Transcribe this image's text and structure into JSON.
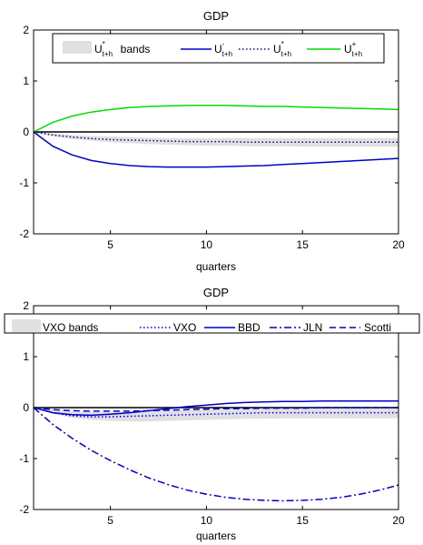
{
  "chart_data": [
    {
      "type": "line",
      "title": "GDP",
      "xlabel": "quarters",
      "ylabel": "",
      "xlim": [
        1,
        20
      ],
      "ylim": [
        -2,
        2
      ],
      "xticks": [
        5,
        10,
        15,
        20
      ],
      "yticks": [
        -2,
        -1,
        0,
        1,
        2
      ],
      "legend_position": "top",
      "band": {
        "name": "U*t+h bands",
        "label_main": "U",
        "label_sup": "*",
        "label_sub": "t+h",
        "label_rest": " bands",
        "color": "#e0e0e0",
        "x": [
          1,
          2,
          3,
          4,
          5,
          6,
          7,
          8,
          9,
          10,
          11,
          12,
          13,
          14,
          15,
          16,
          17,
          18,
          19,
          20
        ],
        "lower": [
          0,
          -0.09,
          -0.14,
          -0.17,
          -0.2,
          -0.22,
          -0.24,
          -0.25,
          -0.26,
          -0.27,
          -0.27,
          -0.28,
          -0.28,
          -0.28,
          -0.29,
          -0.29,
          -0.29,
          -0.29,
          -0.29,
          -0.29
        ],
        "upper": [
          0,
          -0.03,
          -0.06,
          -0.08,
          -0.09,
          -0.1,
          -0.11,
          -0.12,
          -0.12,
          -0.12,
          -0.12,
          -0.12,
          -0.12,
          -0.12,
          -0.12,
          -0.12,
          -0.12,
          -0.12,
          -0.12,
          -0.12
        ]
      },
      "series": [
        {
          "name": "U-t+h",
          "label_main": "U",
          "label_sup": "-",
          "label_sub": "t+h",
          "style": "solid",
          "color": "#0000cc",
          "x": [
            1,
            2,
            3,
            4,
            5,
            6,
            7,
            8,
            9,
            10,
            11,
            12,
            13,
            14,
            15,
            16,
            17,
            18,
            19,
            20
          ],
          "y": [
            0,
            -0.28,
            -0.45,
            -0.56,
            -0.62,
            -0.66,
            -0.68,
            -0.69,
            -0.69,
            -0.69,
            -0.68,
            -0.67,
            -0.66,
            -0.64,
            -0.62,
            -0.6,
            -0.58,
            -0.56,
            -0.54,
            -0.52
          ]
        },
        {
          "name": "U*t+h",
          "label_main": "U",
          "label_sup": "*",
          "label_sub": "t+h",
          "style": "dotted",
          "color": "#0000cc",
          "x": [
            1,
            2,
            3,
            4,
            5,
            6,
            7,
            8,
            9,
            10,
            11,
            12,
            13,
            14,
            15,
            16,
            17,
            18,
            19,
            20
          ],
          "y": [
            0,
            -0.06,
            -0.1,
            -0.13,
            -0.15,
            -0.16,
            -0.17,
            -0.18,
            -0.19,
            -0.19,
            -0.19,
            -0.2,
            -0.2,
            -0.2,
            -0.2,
            -0.2,
            -0.2,
            -0.2,
            -0.2,
            -0.2
          ]
        },
        {
          "name": "U+t+h",
          "label_main": "U",
          "label_sup": "+",
          "label_sub": "t+h",
          "style": "solid",
          "color": "#00dd00",
          "x": [
            1,
            2,
            3,
            4,
            5,
            6,
            7,
            8,
            9,
            10,
            11,
            12,
            13,
            14,
            15,
            16,
            17,
            18,
            19,
            20
          ],
          "y": [
            0,
            0.19,
            0.31,
            0.39,
            0.44,
            0.48,
            0.5,
            0.51,
            0.52,
            0.52,
            0.52,
            0.51,
            0.5,
            0.5,
            0.49,
            0.48,
            0.47,
            0.46,
            0.45,
            0.44
          ]
        }
      ]
    },
    {
      "type": "line",
      "title": "GDP",
      "xlabel": "quarters",
      "ylabel": "",
      "xlim": [
        1,
        20
      ],
      "ylim": [
        -2,
        2
      ],
      "xticks": [
        5,
        10,
        15,
        20
      ],
      "yticks": [
        -2,
        -1,
        0,
        1,
        2
      ],
      "legend_position": "top",
      "band": {
        "name": "VXO bands",
        "label_main": "VXO bands",
        "color": "#e0e0e0",
        "x": [
          1,
          2,
          3,
          4,
          5,
          6,
          7,
          8,
          9,
          10,
          11,
          12,
          13,
          14,
          15,
          16,
          17,
          18,
          19,
          20
        ],
        "lower": [
          0,
          -0.12,
          -0.2,
          -0.24,
          -0.26,
          -0.27,
          -0.27,
          -0.26,
          -0.25,
          -0.24,
          -0.23,
          -0.22,
          -0.22,
          -0.21,
          -0.21,
          -0.21,
          -0.21,
          -0.21,
          -0.21,
          -0.21
        ],
        "upper": [
          0,
          -0.04,
          -0.08,
          -0.09,
          -0.09,
          -0.08,
          -0.07,
          -0.06,
          -0.05,
          -0.04,
          -0.03,
          -0.02,
          -0.02,
          -0.01,
          -0.01,
          -0.01,
          -0.01,
          -0.01,
          -0.01,
          -0.01
        ]
      },
      "series": [
        {
          "name": "VXO",
          "label_main": "VXO",
          "style": "dotted",
          "color": "#0000cc",
          "x": [
            1,
            2,
            3,
            4,
            5,
            6,
            7,
            8,
            9,
            10,
            11,
            12,
            13,
            14,
            15,
            16,
            17,
            18,
            19,
            20
          ],
          "y": [
            0,
            -0.1,
            -0.16,
            -0.18,
            -0.18,
            -0.17,
            -0.16,
            -0.15,
            -0.14,
            -0.13,
            -0.12,
            -0.11,
            -0.1,
            -0.1,
            -0.1,
            -0.1,
            -0.1,
            -0.1,
            -0.1,
            -0.1
          ]
        },
        {
          "name": "BBD",
          "label_main": "BBD",
          "style": "solid",
          "color": "#0000cc",
          "x": [
            1,
            2,
            3,
            4,
            5,
            6,
            7,
            8,
            9,
            10,
            11,
            12,
            13,
            14,
            15,
            16,
            17,
            18,
            19,
            20
          ],
          "y": [
            0,
            -0.1,
            -0.14,
            -0.15,
            -0.13,
            -0.1,
            -0.06,
            -0.02,
            0.02,
            0.05,
            0.08,
            0.1,
            0.11,
            0.12,
            0.12,
            0.13,
            0.13,
            0.13,
            0.13,
            0.13
          ]
        },
        {
          "name": "JLN",
          "label_main": "JLN",
          "style": "dashdot",
          "color": "#0000cc",
          "x": [
            1,
            2,
            3,
            4,
            5,
            6,
            7,
            8,
            9,
            10,
            11,
            12,
            13,
            14,
            15,
            16,
            17,
            18,
            19,
            20
          ],
          "y": [
            0,
            -0.33,
            -0.6,
            -0.84,
            -1.04,
            -1.22,
            -1.38,
            -1.51,
            -1.62,
            -1.7,
            -1.76,
            -1.8,
            -1.82,
            -1.83,
            -1.82,
            -1.8,
            -1.76,
            -1.7,
            -1.62,
            -1.52
          ]
        },
        {
          "name": "Scotti",
          "label_main": "Scotti",
          "style": "dashed",
          "color": "#0000cc",
          "x": [
            1,
            2,
            3,
            4,
            5,
            6,
            7,
            8,
            9,
            10,
            11,
            12,
            13,
            14,
            15,
            16,
            17,
            18,
            19,
            20
          ],
          "y": [
            0,
            -0.04,
            -0.06,
            -0.07,
            -0.07,
            -0.07,
            -0.06,
            -0.05,
            -0.04,
            -0.03,
            -0.02,
            -0.02,
            -0.01,
            -0.01,
            -0.01,
            0,
            0,
            0,
            0,
            0
          ]
        }
      ]
    }
  ]
}
